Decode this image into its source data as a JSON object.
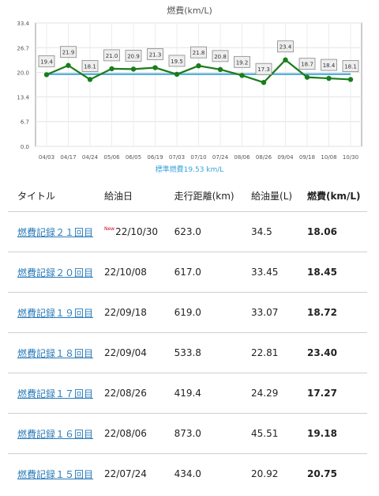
{
  "chart_data": {
    "type": "line",
    "title": "燃費(km/L)",
    "categories": [
      "04/03",
      "04/17",
      "04/24",
      "05/06",
      "06/05",
      "06/19",
      "07/03",
      "07/10",
      "07/24",
      "08/06",
      "08/26",
      "09/04",
      "09/18",
      "10/08",
      "10/30"
    ],
    "values": [
      19.4,
      21.9,
      18.1,
      21.0,
      20.9,
      21.3,
      19.5,
      21.8,
      20.8,
      19.2,
      17.3,
      23.4,
      18.7,
      18.4,
      18.1
    ],
    "data_labels": [
      "19.4",
      "21.9",
      "18.1",
      "21.0",
      "20.9",
      "21.3",
      "19.5",
      "21.8",
      "20.8",
      "19.2",
      "17.3",
      "23.4",
      "18.7",
      "18.4",
      "18.1"
    ],
    "standard_value": 19.53,
    "standard_label": "標準燃費19.53 km/L",
    "y_ticks": [
      "0.0",
      "6.7",
      "13.4",
      "20.0",
      "26.7",
      "33.4"
    ],
    "ylim": [
      0,
      33.4
    ],
    "grid": true,
    "series_color": "#1a7d1a",
    "standard_color": "#3aa3d8"
  },
  "table": {
    "headers": {
      "title": "タイトル",
      "date": "給油日",
      "distance": "走行距離(km)",
      "amount": "給油量(L)",
      "efficiency": "燃費(km/L)"
    },
    "new_label": "New",
    "rows": [
      {
        "title": "燃費記録２１回目",
        "is_new": true,
        "date": "22/10/30",
        "distance": "623.0",
        "amount": "34.5",
        "efficiency": "18.06"
      },
      {
        "title": "燃費記録２０回目",
        "is_new": false,
        "date": "22/10/08",
        "distance": "617.0",
        "amount": "33.45",
        "efficiency": "18.45"
      },
      {
        "title": "燃費記録１９回目",
        "is_new": false,
        "date": "22/09/18",
        "distance": "619.0",
        "amount": "33.07",
        "efficiency": "18.72"
      },
      {
        "title": "燃費記録１８回目",
        "is_new": false,
        "date": "22/09/04",
        "distance": "533.8",
        "amount": "22.81",
        "efficiency": "23.40"
      },
      {
        "title": "燃費記録１７回目",
        "is_new": false,
        "date": "22/08/26",
        "distance": "419.4",
        "amount": "24.29",
        "efficiency": "17.27"
      },
      {
        "title": "燃費記録１６回目",
        "is_new": false,
        "date": "22/08/06",
        "distance": "873.0",
        "amount": "45.51",
        "efficiency": "19.18"
      },
      {
        "title": "燃費記録１５回目",
        "is_new": false,
        "date": "22/07/24",
        "distance": "434.0",
        "amount": "20.92",
        "efficiency": "20.75"
      }
    ]
  }
}
